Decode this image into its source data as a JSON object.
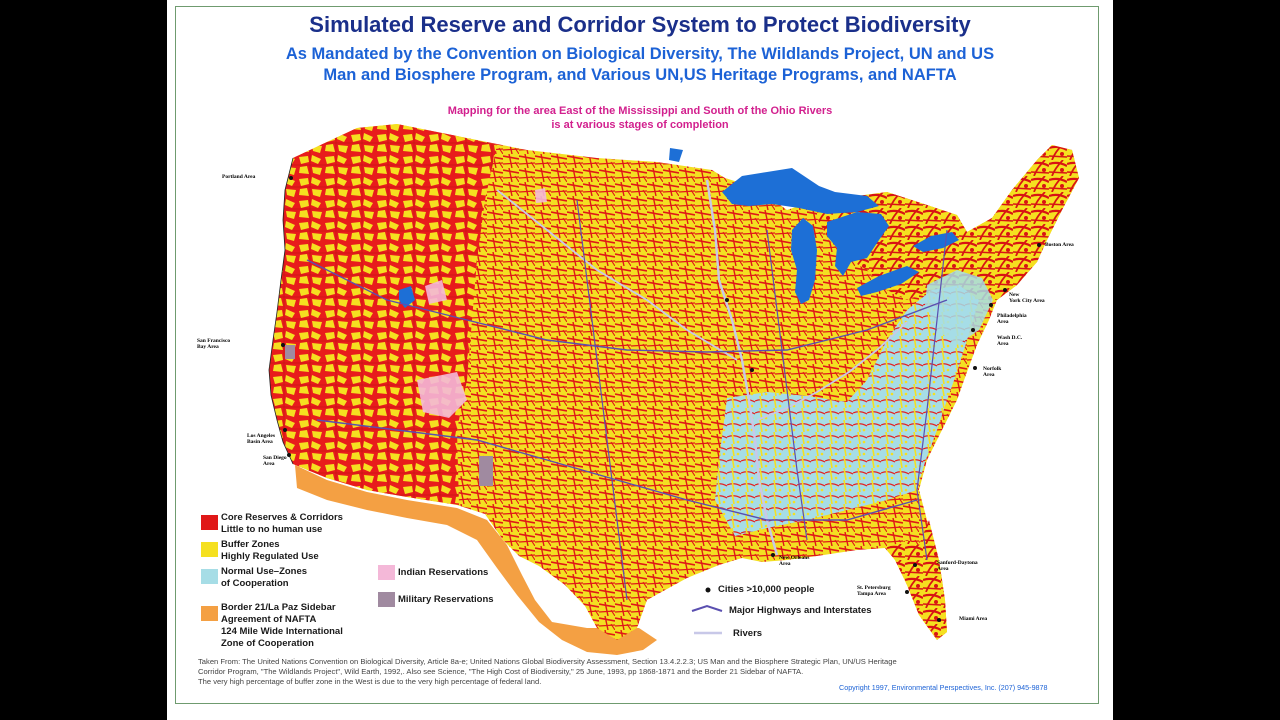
{
  "header": {
    "title": "Simulated Reserve and Corridor System to Protect Biodiversity",
    "subtitle_line1": "As Mandated by the Convention on Biological Diversity, The Wildlands Project, UN and US",
    "subtitle_line2": "Man and Biosphere Program, and Various UN,US Heritage Programs, and NAFTA",
    "note_line1": "Mapping for the area East of the Mississippi and South of the Ohio Rivers",
    "note_line2": "is at various stages of completion"
  },
  "colors": {
    "core": "#e01818",
    "buffer": "#f5e020",
    "normal": "#a6dde6",
    "border21": "#f4a043",
    "indian": "#f4b8d8",
    "military": "#a08aa0",
    "water": "#1d6fd6",
    "highway": "#5a4fb0",
    "river": "#c8c8e8"
  },
  "cities": [
    {
      "key": "portland",
      "label": "Portland Area"
    },
    {
      "key": "sf",
      "label": "San Francisco\nBay Area"
    },
    {
      "key": "la",
      "label": "Los Angeles\nBasin Area"
    },
    {
      "key": "sd",
      "label": "San Diego\nArea"
    },
    {
      "key": "boston",
      "label": "Boston Area"
    },
    {
      "key": "nyc",
      "label": "New\nYork City Area"
    },
    {
      "key": "phil",
      "label": "Philadelphia\nArea"
    },
    {
      "key": "dc",
      "label": "Wash D.C.\nArea"
    },
    {
      "key": "norfolk",
      "label": "Norfolk\nArea"
    },
    {
      "key": "neworleans",
      "label": "New Orleans\nArea"
    },
    {
      "key": "daytona",
      "label": "Sanford-Daytona\nArea"
    },
    {
      "key": "tampa",
      "label": "St. Petersburg\nTampa Area"
    },
    {
      "key": "miami",
      "label": "Miami Area"
    }
  ],
  "legend": {
    "core": "Core Reserves & Corridors\nLittle to no human use",
    "buffer": "Buffer Zones\nHighly Regulated Use",
    "normal": "Normal Use–Zones\nof Cooperation",
    "border21": "Border 21/La Paz Sidebar\nAgreement of NAFTA\n124 Mile Wide International\nZone of Cooperation",
    "indian": "Indian Reservations",
    "military": "Military Reservations",
    "cities": "Cities >10,000 people",
    "highways": "Major Highways and Interstates",
    "rivers": "Rivers"
  },
  "source": {
    "line1": "Taken From: The United Nations Convention on Biological Diversity, Article 8a-e; United Nations Global Biodiversity Assessment, Section 13.4.2.2.3; US Man and the Biosphere Strategic Plan, UN/US Heritage",
    "line2": "Corridor Program, \"The Wildlands Project\", Wild Earth, 1992,. Also see Science, \"The High Cost of Biodiversity,\" 25 June, 1993, pp 1868-1871 and the Border 21 Sidebar of NAFTA.",
    "line3": "The very high percentage of buffer zone in the West is due to the very high percentage of federal land.",
    "copyright": "Copyright 1997, Environmental Perspectives, Inc. (207) 945-9878"
  }
}
